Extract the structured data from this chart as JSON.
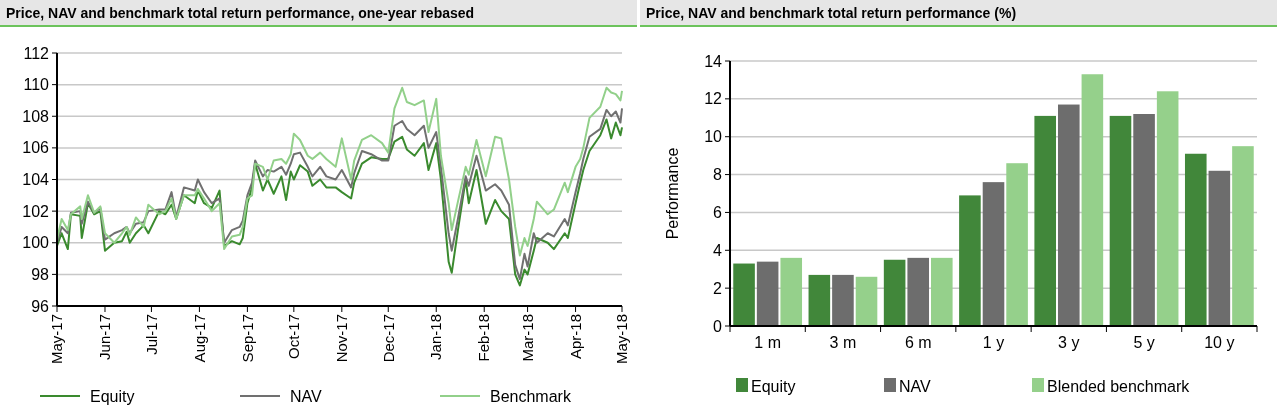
{
  "chart_data": [
    {
      "type": "line",
      "title": "Price, NAV and benchmark total return performance, one-year rebased",
      "x": [
        "2017-05-01",
        "2017-05-04",
        "2017-05-08",
        "2017-05-10",
        "2017-05-16",
        "2017-05-17",
        "2017-05-21",
        "2017-05-25",
        "2017-05-29",
        "2017-06-01",
        "2017-06-07",
        "2017-06-12",
        "2017-06-15",
        "2017-06-17",
        "2017-06-21",
        "2017-06-26",
        "2017-06-29",
        "2017-07-06",
        "2017-07-10",
        "2017-07-14",
        "2017-07-17",
        "2017-07-22",
        "2017-07-29",
        "2017-07-31",
        "2017-08-04",
        "2017-08-09",
        "2017-08-14",
        "2017-08-17",
        "2017-08-22",
        "2017-08-27",
        "2017-08-29",
        "2017-09-01",
        "2017-09-04",
        "2017-09-06",
        "2017-09-11",
        "2017-09-14",
        "2017-09-18",
        "2017-09-23",
        "2017-09-26",
        "2017-09-29",
        "2017-10-01",
        "2017-10-05",
        "2017-10-10",
        "2017-10-13",
        "2017-10-18",
        "2017-10-22",
        "2017-10-28",
        "2017-11-01",
        "2017-11-07",
        "2017-11-09",
        "2017-11-14",
        "2017-11-20",
        "2017-11-27",
        "2017-12-01",
        "2017-12-05",
        "2017-12-10",
        "2017-12-13",
        "2017-12-18",
        "2017-12-24",
        "2017-12-27",
        "2018-01-01",
        "2018-01-04",
        "2018-01-09",
        "2018-01-11",
        "2018-01-15",
        "2018-01-20",
        "2018-01-22",
        "2018-01-27",
        "2018-02-02",
        "2018-02-08",
        "2018-02-12",
        "2018-02-17",
        "2018-02-21",
        "2018-02-24",
        "2018-02-27",
        "2018-03-01",
        "2018-03-05",
        "2018-03-07",
        "2018-03-14",
        "2018-03-18",
        "2018-03-25",
        "2018-03-27",
        "2018-04-01",
        "2018-04-04",
        "2018-04-06",
        "2018-04-10",
        "2018-04-17",
        "2018-04-21",
        "2018-04-24",
        "2018-04-27",
        "2018-04-30",
        "2018-05-01"
      ],
      "series": [
        {
          "name": "Equity",
          "color": "#3a8a2e",
          "values": [
            99.8,
            100.6,
            99.6,
            101.8,
            101.7,
            100.3,
            102.5,
            101.8,
            102.0,
            99.5,
            100.0,
            100.1,
            100.7,
            100.0,
            100.6,
            101.1,
            100.6,
            102.0,
            101.8,
            102.4,
            101.5,
            103.0,
            102.5,
            103.3,
            102.5,
            102.2,
            103.3,
            99.8,
            100.1,
            99.9,
            100.3,
            102.5,
            103.5,
            105.0,
            103.3,
            104.0,
            103.1,
            104.2,
            102.7,
            104.5,
            104.0,
            104.9,
            104.5,
            103.6,
            104.0,
            103.5,
            103.5,
            103.2,
            102.8,
            103.8,
            105.0,
            105.4,
            105.3,
            105.3,
            106.4,
            106.7,
            105.9,
            105.5,
            106.3,
            104.6,
            106.3,
            104.0,
            98.8,
            98.1,
            100.8,
            104.0,
            102.5,
            104.6,
            101.2,
            102.7,
            102.0,
            101.5,
            98.0,
            97.3,
            98.3,
            98.0,
            99.5,
            100.3,
            100.0,
            99.6,
            100.6,
            100.3,
            102.5,
            103.8,
            104.6,
            105.8,
            106.8,
            107.8,
            106.6,
            107.6,
            106.8,
            107.3
          ]
        },
        {
          "name": "NAV",
          "color": "#707070",
          "values": [
            100.0,
            101.0,
            100.6,
            101.9,
            102.0,
            101.2,
            102.6,
            101.9,
            102.2,
            100.2,
            100.6,
            100.8,
            101.0,
            100.6,
            101.2,
            101.3,
            102.0,
            102.1,
            102.1,
            103.2,
            101.6,
            103.5,
            103.3,
            104.0,
            103.2,
            102.5,
            102.8,
            100.0,
            100.8,
            101.0,
            101.4,
            103.0,
            103.8,
            105.2,
            104.2,
            104.6,
            104.5,
            104.8,
            104.3,
            105.0,
            105.6,
            105.7,
            104.8,
            104.2,
            104.8,
            104.2,
            104.0,
            104.6,
            103.5,
            104.4,
            105.8,
            105.6,
            105.2,
            105.2,
            107.4,
            107.7,
            107.2,
            106.8,
            107.4,
            106.0,
            107.0,
            104.8,
            100.6,
            99.5,
            101.5,
            104.2,
            103.6,
            105.5,
            103.3,
            103.7,
            103.3,
            102.4,
            98.6,
            97.7,
            99.3,
            98.5,
            100.6,
            100.0,
            100.6,
            100.4,
            101.5,
            101.1,
            103.2,
            104.4,
            105.3,
            106.7,
            107.2,
            108.4,
            108.0,
            108.3,
            107.6,
            108.5
          ]
        },
        {
          "name": "Benchmark",
          "color": "#92d08a",
          "values": [
            100.2,
            101.5,
            100.8,
            101.8,
            102.3,
            101.5,
            103.0,
            101.9,
            102.3,
            100.6,
            100.0,
            100.6,
            101.0,
            100.5,
            101.6,
            101.0,
            102.4,
            101.8,
            102.0,
            102.8,
            101.5,
            103.0,
            103.0,
            103.4,
            102.8,
            102.0,
            102.5,
            99.6,
            100.4,
            100.5,
            101.0,
            102.8,
            103.0,
            105.0,
            104.8,
            104.0,
            105.2,
            105.3,
            105.0,
            105.6,
            106.9,
            106.5,
            105.5,
            105.3,
            105.7,
            105.3,
            104.8,
            106.6,
            104.0,
            105.2,
            106.5,
            106.8,
            106.3,
            105.7,
            108.5,
            109.8,
            108.9,
            108.7,
            109.0,
            107.0,
            109.1,
            105.5,
            102.5,
            100.8,
            102.6,
            104.8,
            104.3,
            106.5,
            104.2,
            106.7,
            106.6,
            104.0,
            101.0,
            99.2,
            100.3,
            99.8,
            101.5,
            102.6,
            101.8,
            102.1,
            103.8,
            103.2,
            104.8,
            105.3,
            106.0,
            107.9,
            108.6,
            109.8,
            109.5,
            109.4,
            109.0,
            109.6
          ]
        }
      ],
      "xlim": [
        "2017-05-01",
        "2018-05-01"
      ],
      "xticks": [
        {
          "value": "2017-05",
          "label": "May-17"
        },
        {
          "value": "2017-06",
          "label": "Jun-17"
        },
        {
          "value": "2017-07",
          "label": "Jul-17"
        },
        {
          "value": "2017-08",
          "label": "Aug-17"
        },
        {
          "value": "2017-09",
          "label": "Sep-17"
        },
        {
          "value": "2017-10",
          "label": "Oct-17"
        },
        {
          "value": "2017-11",
          "label": "Nov-17"
        },
        {
          "value": "2017-12",
          "label": "Dec-17"
        },
        {
          "value": "2018-01",
          "label": "Jan-18"
        },
        {
          "value": "2018-02",
          "label": "Feb-18"
        },
        {
          "value": "2018-03",
          "label": "Mar-18"
        },
        {
          "value": "2018-04",
          "label": "Apr-18"
        },
        {
          "value": "2018-05",
          "label": "May-18"
        }
      ],
      "ylim": [
        96,
        112
      ],
      "yticks": [
        96,
        98,
        100,
        102,
        104,
        106,
        108,
        110,
        112
      ],
      "grid": "y",
      "legend": "bottom",
      "marker": "none",
      "line_style": "solid"
    },
    {
      "type": "bar",
      "title": "Price, NAV and benchmark total return performance (%)",
      "ylabel": "Performance",
      "categories": [
        "1 m",
        "3 m",
        "6 m",
        "1 y",
        "3 y",
        "5 y",
        "10 y"
      ],
      "series": [
        {
          "name": "Equity",
          "color": "#41873a",
          "values": [
            3.3,
            2.7,
            3.5,
            6.9,
            11.1,
            11.1,
            9.1
          ]
        },
        {
          "name": "NAV",
          "color": "#6d6d6d",
          "values": [
            3.4,
            2.7,
            3.6,
            7.6,
            11.7,
            11.2,
            8.2
          ]
        },
        {
          "name": "Blended benchmark",
          "color": "#95d08b",
          "values": [
            3.6,
            2.6,
            3.6,
            8.6,
            13.3,
            12.4,
            9.5
          ]
        }
      ],
      "ylim": [
        0,
        14
      ],
      "yticks": [
        0,
        2,
        4,
        6,
        8,
        10,
        12,
        14
      ],
      "grid": "y",
      "legend": "bottom"
    }
  ]
}
